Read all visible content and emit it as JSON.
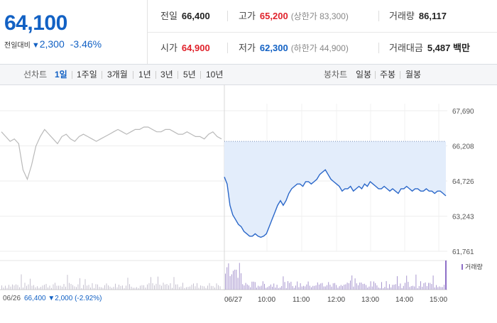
{
  "quote": {
    "current_price": "64,100",
    "change_label": "전일대비",
    "change_arrow": "▼",
    "change_value": "2,300",
    "change_pct": "-3.46%"
  },
  "stats": {
    "row1": [
      {
        "label": "전일",
        "value": "66,400",
        "color": "neutral"
      },
      {
        "label": "고가",
        "value": "65,200",
        "color": "up",
        "sub": "(상한가 83,300)"
      },
      {
        "label": "거래량",
        "value": "86,117",
        "color": "neutral"
      }
    ],
    "row2": [
      {
        "label": "시가",
        "value": "64,900",
        "color": "up"
      },
      {
        "label": "저가",
        "value": "62,300",
        "color": "down",
        "sub": "(하한가 44,900)"
      },
      {
        "label": "거래대금",
        "value": "5,487 백만",
        "color": "neutral"
      }
    ]
  },
  "toolbar": {
    "line_label": "선차트",
    "periods": [
      "1일",
      "1주일",
      "3개월",
      "1년",
      "3년",
      "5년",
      "10년"
    ],
    "active_period": "1일",
    "candle_label": "봉차트",
    "candle_periods": [
      "일봉",
      "주봉",
      "월봉"
    ]
  },
  "chart_data": {
    "type": "line",
    "y_ticks": [
      "67,690",
      "66,208",
      "64,726",
      "63,243",
      "61,761"
    ],
    "ylim": [
      61761,
      67690
    ],
    "reference_line": 66400,
    "volume_label": "거래량",
    "x_labels": [
      "06/27",
      "10:00",
      "11:00",
      "12:00",
      "13:00",
      "14:00",
      "15:00"
    ],
    "prev_day": {
      "date": "06/26",
      "summary": "66,400 ▼2,000 (-2.92%)",
      "values": [
        66800,
        66600,
        66400,
        66500,
        66300,
        65200,
        64800,
        65400,
        66200,
        66600,
        66900,
        66700,
        66500,
        66300,
        66600,
        66700,
        66500,
        66400,
        66600,
        66700,
        66600,
        66500,
        66400,
        66500,
        66600,
        66700,
        66800,
        66900,
        66800,
        66700,
        66800,
        66900,
        66900,
        67000,
        67000,
        66900,
        66800,
        66800,
        66900,
        66900,
        66800,
        66700,
        66700,
        66800,
        66700,
        66600,
        66600,
        66500,
        66700,
        66800,
        66600,
        66500
      ]
    },
    "today": {
      "values": [
        64900,
        64600,
        63700,
        63300,
        63100,
        62900,
        62800,
        62600,
        62500,
        62400,
        62400,
        62500,
        62400,
        62350,
        62400,
        62500,
        62800,
        63100,
        63400,
        63700,
        63900,
        63700,
        63900,
        64200,
        64400,
        64500,
        64600,
        64600,
        64500,
        64700,
        64700,
        64600,
        64700,
        64800,
        65000,
        65100,
        65200,
        65000,
        64800,
        64700,
        64600,
        64500,
        64300,
        64400,
        64400,
        64500,
        64300,
        64400,
        64500,
        64400,
        64600,
        64500,
        64700,
        64600,
        64500,
        64400,
        64400,
        64500,
        64400,
        64300,
        64400,
        64300,
        64200,
        64400,
        64400,
        64500,
        64400,
        64300,
        64400,
        64400,
        64300,
        64300,
        64400,
        64300,
        64300,
        64200,
        64300,
        64300,
        64200,
        64100
      ]
    }
  }
}
